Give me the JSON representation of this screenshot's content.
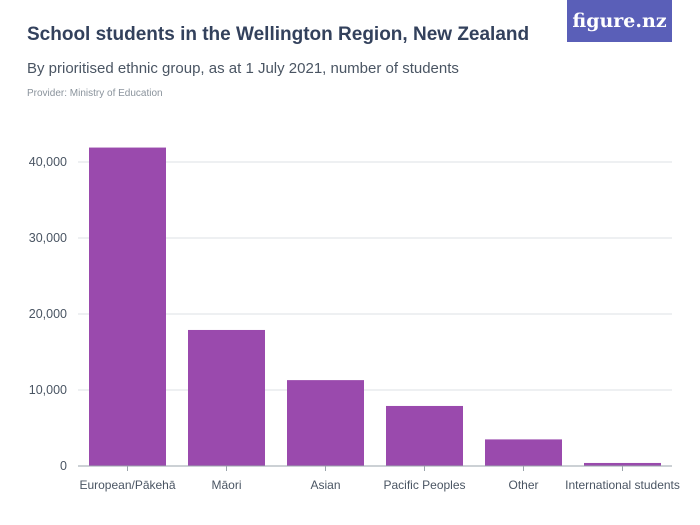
{
  "header": {
    "title": "School students in the Wellington Region, New Zealand",
    "subtitle": "By prioritised ethnic group, as at 1 July 2021, number of students",
    "provider": "Provider: Ministry of Education",
    "logo_text": "figure.nz"
  },
  "colors": {
    "bar": "#9a4aad",
    "grid": "#dde1e5",
    "logo_bg": "#5a5fb8"
  },
  "chart_data": {
    "type": "bar",
    "title": "School students in the Wellington Region, New Zealand",
    "subtitle": "By prioritised ethnic group, as at 1 July 2021, number of students",
    "xlabel": "",
    "ylabel": "",
    "categories": [
      "European/Pākehā",
      "Māori",
      "Asian",
      "Pacific Peoples",
      "Other",
      "International students"
    ],
    "values": [
      41900,
      17900,
      11300,
      7900,
      3500,
      400
    ],
    "ylim": [
      0,
      40000
    ],
    "yticks": [
      0,
      10000,
      20000,
      30000,
      40000
    ],
    "ytick_labels": [
      "0",
      "10,000",
      "20,000",
      "30,000",
      "40,000"
    ],
    "grid": true
  }
}
